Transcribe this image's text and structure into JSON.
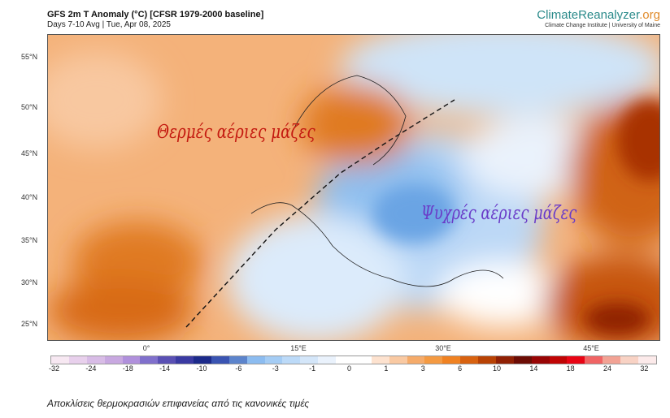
{
  "header": {
    "title": "GFS 2m T Anomaly (°C) [CFSR 1979-2000 baseline]",
    "subtitle": "Days 7-10 Avg | Tue, Apr 08, 2025"
  },
  "logo": {
    "name_main": "ClimateReanalyzer",
    "name_tld": ".org",
    "affiliation": "Climate Change Institute | University of Maine"
  },
  "map": {
    "lat_labels": [
      "55°N",
      "50°N",
      "45°N",
      "40°N",
      "35°N",
      "30°N",
      "25°N"
    ],
    "lon_labels": [
      "0°",
      "15°E",
      "30°E",
      "45°E"
    ],
    "annotations": {
      "warm": "Θερμές αέριες μάζες",
      "cold": "Ψυχρές αέριες μάζες"
    },
    "colors": {
      "warm_base": "#f2a766",
      "warm_strong": "#c8520c",
      "cold": "#a9cdf2",
      "neutral": "#ffffff"
    }
  },
  "colorbar": {
    "tick_labels": [
      "-32",
      "-24",
      "-18",
      "-14",
      "-10",
      "-6",
      "-3",
      "-1",
      "0",
      "1",
      "3",
      "6",
      "10",
      "14",
      "18",
      "24",
      "32"
    ],
    "colors": [
      "#f7e8f2",
      "#e8d0ec",
      "#d8bce6",
      "#c8a8e0",
      "#b090dc",
      "#8070cc",
      "#5a50b4",
      "#3a3aa2",
      "#1c2a8a",
      "#3a54b2",
      "#5c84cc",
      "#8cbcf0",
      "#a4ccf4",
      "#bcdaf8",
      "#d4e6f9",
      "#eaf2fc",
      "#ffffff",
      "#ffffff",
      "#fde2cf",
      "#f9c9a2",
      "#f5ab6a",
      "#f49a42",
      "#f08222",
      "#d86210",
      "#b84204",
      "#902004",
      "#6c0c04",
      "#980404",
      "#c00404",
      "#e80414",
      "#f06464",
      "#f2a294",
      "#f8d2c4",
      "#fceaea"
    ]
  },
  "caption": "Αποκλίσεις θερμοκρασιών επιφανείας από τις κανονικές τιμές"
}
